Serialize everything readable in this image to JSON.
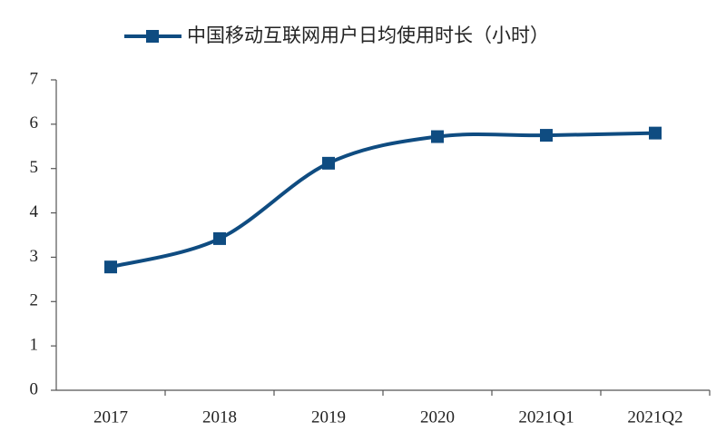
{
  "chart_data": {
    "type": "line",
    "categories": [
      "2017",
      "2018",
      "2019",
      "2020",
      "2021Q1",
      "2021Q2"
    ],
    "series": [
      {
        "name": "中国移动互联网用户日均使用时长（小时）",
        "color": "#0f4c81",
        "values": [
          2.78,
          3.42,
          5.12,
          5.72,
          5.75,
          5.8
        ]
      }
    ],
    "ylim": [
      0,
      7
    ],
    "yticks": [
      0,
      1,
      2,
      3,
      4,
      5,
      6,
      7
    ],
    "grid": false,
    "legend": "top"
  }
}
